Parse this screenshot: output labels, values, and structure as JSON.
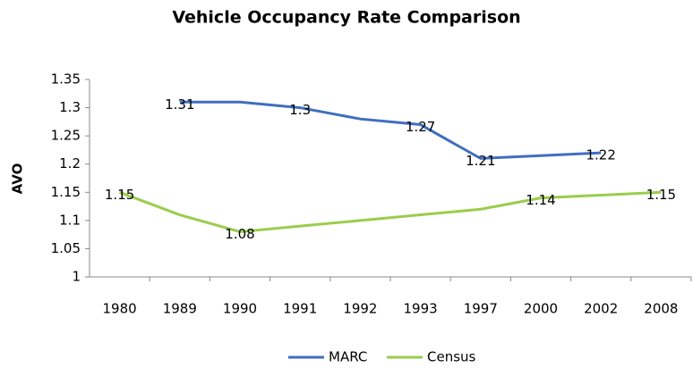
{
  "chart_data": {
    "type": "line",
    "title": "Vehicle Occupancy Rate Comparison",
    "y_label": "AVO",
    "categories": [
      "1980",
      "1989",
      "1990",
      "1991",
      "1992",
      "1993",
      "1997",
      "2000",
      "2002",
      "2008"
    ],
    "series": [
      {
        "name": "MARC",
        "color": "#3f6fbf",
        "values": [
          null,
          1.31,
          1.31,
          1.3,
          1.28,
          1.27,
          1.21,
          1.215,
          1.22,
          null
        ],
        "value_labels": [
          null,
          "1.31",
          null,
          "1.3",
          null,
          "1.27",
          "1.21",
          null,
          "1.22",
          null
        ]
      },
      {
        "name": "Census",
        "color": "#9acd4c",
        "values": [
          1.15,
          1.11,
          1.08,
          1.09,
          1.1,
          1.11,
          1.12,
          1.14,
          1.145,
          1.15
        ],
        "value_labels": [
          "1.15",
          null,
          "1.08",
          null,
          null,
          null,
          null,
          "1.14",
          null,
          "1.15"
        ]
      }
    ],
    "ylim": [
      1,
      1.35
    ],
    "yticks": [
      {
        "value": 1,
        "label": "1"
      },
      1.05,
      {
        "value": 1.1,
        "label": "1.1"
      },
      1.15,
      {
        "value": 1.2,
        "label": "1.2"
      },
      1.25,
      {
        "value": 1.3,
        "label": "1.3"
      },
      1.35
    ]
  }
}
